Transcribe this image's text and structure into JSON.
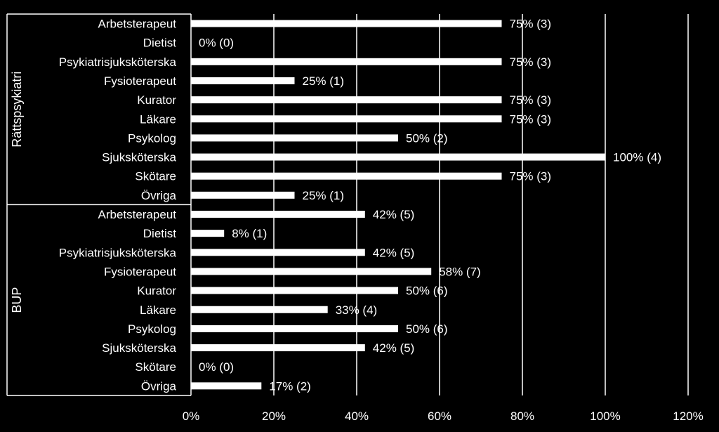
{
  "colors": {
    "background": "#000000",
    "bars": "#ffffff",
    "gridlines": "#ffffff",
    "text": "#ffffff"
  },
  "chart_data": {
    "type": "bar",
    "orientation": "horizontal",
    "xlim": [
      0,
      120
    ],
    "xticks": [
      "0%",
      "20%",
      "40%",
      "60%",
      "80%",
      "100%",
      "120%"
    ],
    "xtick_values": [
      0,
      20,
      40,
      60,
      80,
      100,
      120
    ],
    "grid": "vertical",
    "groups": [
      {
        "name": "Rättspsykiatri",
        "categories": [
          "Arbetsterapeut",
          "Dietist",
          "Psykiatrisjuksköterska",
          "Fysioterapeut",
          "Kurator",
          "Läkare",
          "Psykolog",
          "Sjuksköterska",
          "Skötare",
          "Övriga"
        ],
        "values": [
          75,
          0,
          75,
          25,
          75,
          75,
          50,
          100,
          75,
          25
        ],
        "labels": [
          "75% (3)",
          "0% (0)",
          "75% (3)",
          "25% (1)",
          "75% (3)",
          "75% (3)",
          "50% (2)",
          "100% (4)",
          "75% (3)",
          "25% (1)"
        ]
      },
      {
        "name": "BUP",
        "categories": [
          "Arbetsterapeut",
          "Dietist",
          "Psykiatrisjuksköterska",
          "Fysioterapeut",
          "Kurator",
          "Läkare",
          "Psykolog",
          "Sjuksköterska",
          "Skötare",
          "Övriga"
        ],
        "values": [
          42,
          8,
          42,
          58,
          50,
          33,
          50,
          42,
          0,
          17
        ],
        "labels": [
          "42% (5)",
          "8% (1)",
          "42% (5)",
          "58% (7)",
          "50% (6)",
          "33% (4)",
          "50% (6)",
          "42% (5)",
          "0% (0)",
          "17% (2)"
        ]
      }
    ]
  }
}
